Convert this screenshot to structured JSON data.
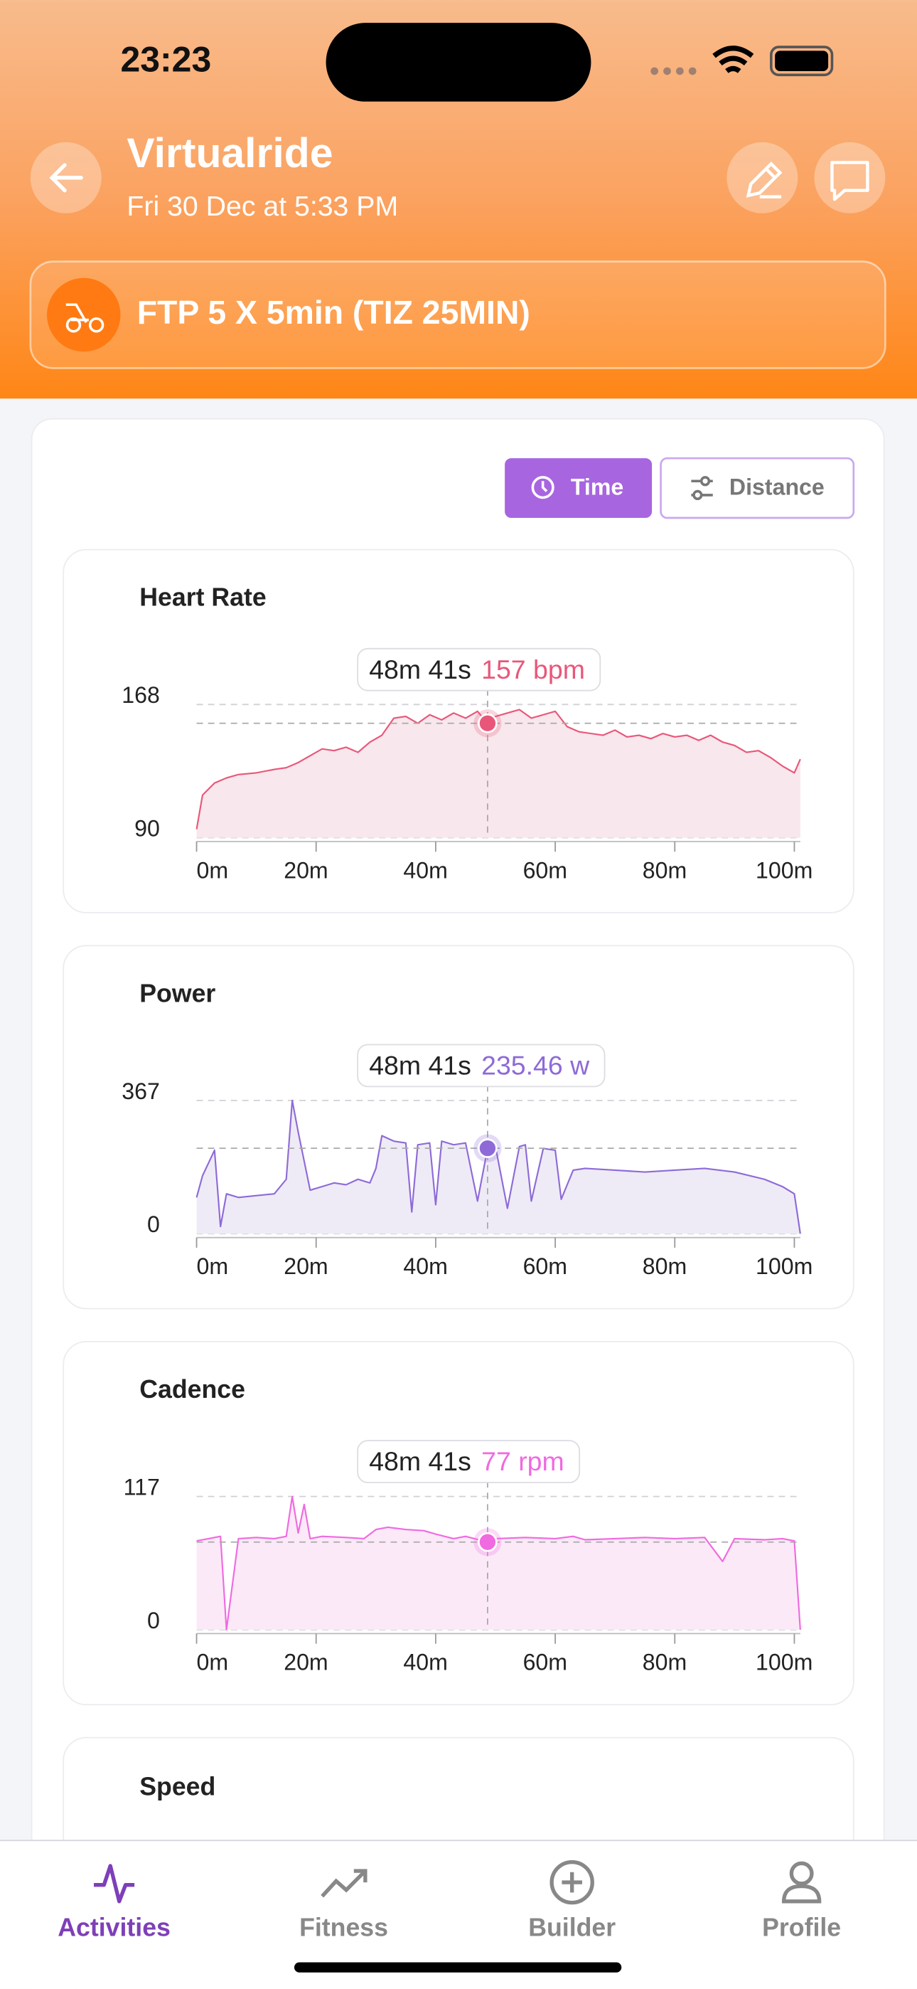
{
  "status_bar": {
    "time": "23:23"
  },
  "header": {
    "title": "Virtualride",
    "subtitle": "Fri 30 Dec at 5:33 PM",
    "workout": "FTP 5 X 5min (TIZ 25MIN)"
  },
  "toggle": {
    "time": "Time",
    "distance": "Distance"
  },
  "chart_data": [
    {
      "type": "line",
      "title": "Heart Rate",
      "color": "#e8577a",
      "fill": "#f8e7ec",
      "x": [
        0,
        1,
        3,
        5,
        7,
        10,
        13,
        15,
        17,
        19,
        21,
        23,
        25,
        27,
        29,
        31,
        33,
        35,
        37,
        39,
        41,
        43,
        45,
        47,
        48.68,
        50,
        52,
        54,
        56,
        58,
        60,
        62,
        64,
        66,
        68,
        70,
        72,
        74,
        76,
        78,
        80,
        82,
        84,
        86,
        88,
        90,
        92,
        94,
        96,
        98,
        100,
        101
      ],
      "values": [
        95,
        115,
        122,
        125,
        127,
        128,
        130,
        131,
        134,
        138,
        142,
        141,
        143,
        140,
        146,
        150,
        160,
        161,
        157,
        162,
        159,
        163,
        160,
        164,
        157,
        161,
        163,
        165,
        160,
        162,
        164,
        155,
        152,
        151,
        150,
        153,
        149,
        150,
        148,
        151,
        149,
        150,
        147,
        150,
        146,
        144,
        140,
        141,
        137,
        132,
        128,
        136
      ],
      "xlim": [
        0,
        101
      ],
      "xticks": [
        {
          "value": 0,
          "label": "0m"
        },
        {
          "value": 20,
          "label": "20m"
        },
        {
          "value": 40,
          "label": "40m"
        },
        {
          "value": 60,
          "label": "60m"
        },
        {
          "value": 80,
          "label": "80m"
        },
        {
          "value": 100,
          "label": "100m"
        }
      ],
      "ylim": [
        90,
        168
      ],
      "yticks": [
        90,
        168
      ],
      "grid": true,
      "tooltip": {
        "x": 48.68,
        "x_label": "48m 41s",
        "value": 157,
        "value_label": "157 bpm"
      }
    },
    {
      "type": "line",
      "title": "Power",
      "color": "#8e6ad8",
      "fill": "#eeebf6",
      "x": [
        0,
        1,
        3,
        4,
        5,
        7,
        10,
        13,
        15,
        16,
        17,
        19,
        21,
        23,
        25,
        27,
        29,
        30,
        31,
        33,
        35,
        36,
        37,
        39,
        40,
        41,
        43,
        45,
        47,
        48.68,
        50,
        52,
        54,
        55,
        56,
        58,
        60,
        61,
        63,
        65,
        70,
        75,
        80,
        85,
        90,
        95,
        98,
        100,
        101
      ],
      "values": [
        100,
        160,
        230,
        20,
        110,
        100,
        105,
        110,
        150,
        367,
        280,
        120,
        130,
        140,
        135,
        150,
        140,
        180,
        270,
        255,
        250,
        60,
        245,
        250,
        80,
        255,
        245,
        250,
        90,
        235,
        240,
        70,
        240,
        245,
        90,
        235,
        230,
        95,
        175,
        180,
        175,
        170,
        175,
        180,
        170,
        150,
        130,
        110,
        0
      ],
      "xlim": [
        0,
        101
      ],
      "xticks": [
        {
          "value": 0,
          "label": "0m"
        },
        {
          "value": 20,
          "label": "20m"
        },
        {
          "value": 40,
          "label": "40m"
        },
        {
          "value": 60,
          "label": "60m"
        },
        {
          "value": 80,
          "label": "80m"
        },
        {
          "value": 100,
          "label": "100m"
        }
      ],
      "ylim": [
        0,
        367
      ],
      "yticks": [
        0,
        367
      ],
      "grid": true,
      "tooltip": {
        "x": 48.68,
        "x_label": "48m 41s",
        "value": 235.46,
        "value_label": "235.46 w"
      }
    },
    {
      "type": "line",
      "title": "Cadence",
      "color": "#f06ae0",
      "fill": "#fbe9f8",
      "x": [
        0,
        2,
        4,
        5,
        7,
        10,
        13,
        15,
        16,
        17,
        18,
        19,
        21,
        25,
        28,
        30,
        32,
        35,
        38,
        40,
        43,
        45,
        48.68,
        50,
        55,
        60,
        63,
        65,
        70,
        75,
        80,
        85,
        88,
        90,
        95,
        98,
        100,
        101
      ],
      "values": [
        78,
        80,
        82,
        0,
        80,
        81,
        80,
        82,
        117,
        85,
        110,
        80,
        82,
        81,
        80,
        88,
        90,
        88,
        87,
        84,
        80,
        82,
        77,
        80,
        81,
        80,
        82,
        79,
        80,
        81,
        80,
        81,
        60,
        80,
        79,
        80,
        78,
        0
      ],
      "xlim": [
        0,
        101
      ],
      "xticks": [
        {
          "value": 0,
          "label": "0m"
        },
        {
          "value": 20,
          "label": "20m"
        },
        {
          "value": 40,
          "label": "40m"
        },
        {
          "value": 60,
          "label": "60m"
        },
        {
          "value": 80,
          "label": "80m"
        },
        {
          "value": 100,
          "label": "100m"
        }
      ],
      "ylim": [
        0,
        117
      ],
      "yticks": [
        0,
        117
      ],
      "grid": true,
      "tooltip": {
        "x": 48.68,
        "x_label": "48m 41s",
        "value": 77,
        "value_label": "77 rpm"
      }
    }
  ],
  "speed_card": {
    "title": "Speed"
  },
  "nav": {
    "items": [
      "Activities",
      "Fitness",
      "Builder",
      "Profile"
    ]
  }
}
